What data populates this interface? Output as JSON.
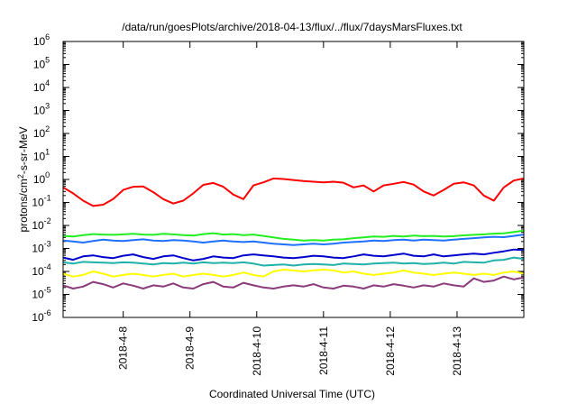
{
  "chart_data": {
    "type": "line",
    "title": "/data/run/goesPlots/archive/2018-04-13/flux/../flux/7daysMarsFluxes.txt",
    "xlabel": "Coordinated Universal Time (UTC)",
    "ylabel_main": "protons/cm",
    "ylabel_sup": "2",
    "ylabel_rest": "-s-sr-MeV",
    "yscale": "log",
    "ylim_exp": [
      -6,
      6
    ],
    "ytick_base": "10",
    "ytick_exponents": [
      "-6",
      "-5",
      "-4",
      "-3",
      "-2",
      "-1",
      "0",
      "1",
      "2",
      "3",
      "4",
      "5",
      "6"
    ],
    "xlim_days": [
      7.1,
      14.0
    ],
    "x_tick_positions_days": [
      8,
      9,
      10,
      11,
      12,
      13
    ],
    "x_tick_labels": [
      "2018-4-8",
      "2018-4-9",
      "2018-4-10",
      "2018-4-11",
      "2018-4-12",
      "2018-4-13"
    ],
    "grid": false,
    "legend": "none",
    "x_days": [
      7.1,
      7.25,
      7.4,
      7.55,
      7.7,
      7.85,
      8.0,
      8.15,
      8.3,
      8.45,
      8.6,
      8.75,
      8.9,
      9.05,
      9.2,
      9.35,
      9.5,
      9.65,
      9.8,
      9.95,
      10.1,
      10.25,
      10.4,
      10.55,
      10.7,
      10.85,
      11.0,
      11.15,
      11.3,
      11.45,
      11.6,
      11.75,
      11.9,
      12.05,
      12.2,
      12.35,
      12.5,
      12.65,
      12.8,
      12.95,
      13.1,
      13.25,
      13.4,
      13.55,
      13.7,
      13.85,
      14.0
    ],
    "series": [
      {
        "color": "#ff0000",
        "width": 2,
        "values": [
          0.45,
          0.25,
          0.12,
          0.07,
          0.08,
          0.14,
          0.35,
          0.48,
          0.5,
          0.28,
          0.14,
          0.09,
          0.12,
          0.25,
          0.58,
          0.7,
          0.48,
          0.22,
          0.14,
          0.55,
          0.75,
          1.1,
          1.05,
          0.95,
          0.85,
          0.8,
          0.75,
          0.8,
          0.72,
          0.45,
          0.55,
          0.3,
          0.55,
          0.65,
          0.78,
          0.6,
          0.3,
          0.2,
          0.35,
          0.65,
          0.75,
          0.55,
          0.2,
          0.12,
          0.45,
          0.9,
          1.1
        ]
      },
      {
        "color": "#22ee22",
        "width": 2,
        "values": [
          0.0035,
          0.0033,
          0.0038,
          0.0042,
          0.004,
          0.0039,
          0.0041,
          0.0043,
          0.004,
          0.0039,
          0.0043,
          0.0041,
          0.0038,
          0.0036,
          0.0042,
          0.0046,
          0.004,
          0.0042,
          0.0038,
          0.004,
          0.0035,
          0.003,
          0.0026,
          0.0024,
          0.0022,
          0.0023,
          0.0022,
          0.0024,
          0.0025,
          0.0028,
          0.003,
          0.0033,
          0.0032,
          0.0035,
          0.0033,
          0.0036,
          0.0034,
          0.0035,
          0.0033,
          0.0034,
          0.0037,
          0.0039,
          0.0041,
          0.0044,
          0.0045,
          0.0052,
          0.006
        ]
      },
      {
        "color": "#1e70ff",
        "width": 2,
        "values": [
          0.0022,
          0.002,
          0.0018,
          0.0021,
          0.0024,
          0.0022,
          0.0021,
          0.0023,
          0.0025,
          0.0022,
          0.0021,
          0.0023,
          0.0022,
          0.002,
          0.0018,
          0.002,
          0.0022,
          0.002,
          0.0019,
          0.002,
          0.0018,
          0.0016,
          0.0015,
          0.0014,
          0.0015,
          0.0016,
          0.0015,
          0.0016,
          0.0018,
          0.0019,
          0.002,
          0.0022,
          0.0021,
          0.0023,
          0.0024,
          0.0022,
          0.0024,
          0.0023,
          0.0022,
          0.0024,
          0.0026,
          0.0028,
          0.003,
          0.0032,
          0.0031,
          0.0035,
          0.004
        ]
      },
      {
        "color": "#0000cc",
        "width": 2,
        "values": [
          0.0004,
          0.00032,
          0.00045,
          0.0005,
          0.00042,
          0.00038,
          0.00048,
          0.00055,
          0.00042,
          0.00035,
          0.00045,
          0.0005,
          0.00038,
          0.0003,
          0.00035,
          0.00045,
          0.0004,
          0.00038,
          0.0005,
          0.00055,
          0.0005,
          0.00045,
          0.0004,
          0.00038,
          0.00042,
          0.00048,
          0.00045,
          0.0004,
          0.00038,
          0.00045,
          0.00055,
          0.00048,
          0.00045,
          0.00052,
          0.0006,
          0.00048,
          0.00045,
          0.00055,
          0.00045,
          0.0005,
          0.00055,
          0.0006,
          0.00055,
          0.00065,
          0.00075,
          0.0009,
          0.00085
        ]
      },
      {
        "color": "#20b2aa",
        "width": 2,
        "values": [
          0.00025,
          0.00022,
          0.00026,
          0.00025,
          0.00024,
          0.00023,
          0.00025,
          0.00024,
          0.00022,
          0.0002,
          0.00023,
          0.00022,
          0.00024,
          0.00022,
          0.00025,
          0.00023,
          0.00024,
          0.00023,
          0.00025,
          0.00022,
          0.00018,
          0.00019,
          0.0002,
          0.00018,
          0.0002,
          0.00021,
          0.0002,
          0.00019,
          0.00022,
          0.00021,
          0.0002,
          0.00022,
          0.00023,
          0.00024,
          0.00022,
          0.00023,
          0.00021,
          0.00022,
          0.00024,
          0.00022,
          0.00026,
          0.00025,
          0.00024,
          0.0003,
          0.00032,
          0.0004,
          0.00035
        ]
      },
      {
        "color": "#ffff00",
        "width": 2,
        "values": [
          8e-05,
          6e-05,
          7e-05,
          0.0001,
          8e-05,
          6e-05,
          7e-05,
          8e-05,
          7e-05,
          6e-05,
          7e-05,
          8e-05,
          6e-05,
          7e-05,
          8e-05,
          7e-05,
          6e-05,
          7e-05,
          9e-05,
          7e-05,
          6e-05,
          0.0001,
          0.00012,
          0.00011,
          0.0001,
          0.00011,
          0.00012,
          0.00011,
          9e-05,
          0.0001,
          8e-05,
          7e-05,
          8e-05,
          9e-05,
          0.00011,
          9e-05,
          8e-05,
          7e-05,
          8e-05,
          9e-05,
          8e-05,
          7e-05,
          8e-05,
          7e-05,
          9e-05,
          0.0001,
          8e-05
        ]
      },
      {
        "color": "#8b3a7a",
        "width": 2,
        "values": [
          2.5e-05,
          1.8e-05,
          2.2e-05,
          3.5e-05,
          2.8e-05,
          2e-05,
          3e-05,
          2.4e-05,
          1.8e-05,
          2.5e-05,
          2.2e-05,
          3e-05,
          2e-05,
          1.8e-05,
          2.8e-05,
          3.5e-05,
          2.2e-05,
          2e-05,
          3.2e-05,
          2.5e-05,
          2e-05,
          1.8e-05,
          2.2e-05,
          2.5e-05,
          2.2e-05,
          2.8e-05,
          2e-05,
          1.8e-05,
          2.4e-05,
          2.2e-05,
          1.8e-05,
          2.5e-05,
          2.2e-05,
          2.8e-05,
          2.4e-05,
          2e-05,
          2.5e-05,
          2.2e-05,
          3e-05,
          2.5e-05,
          2.2e-05,
          5e-05,
          3.5e-05,
          4e-05,
          6e-05,
          4.5e-05,
          5.5e-05
        ]
      }
    ]
  }
}
